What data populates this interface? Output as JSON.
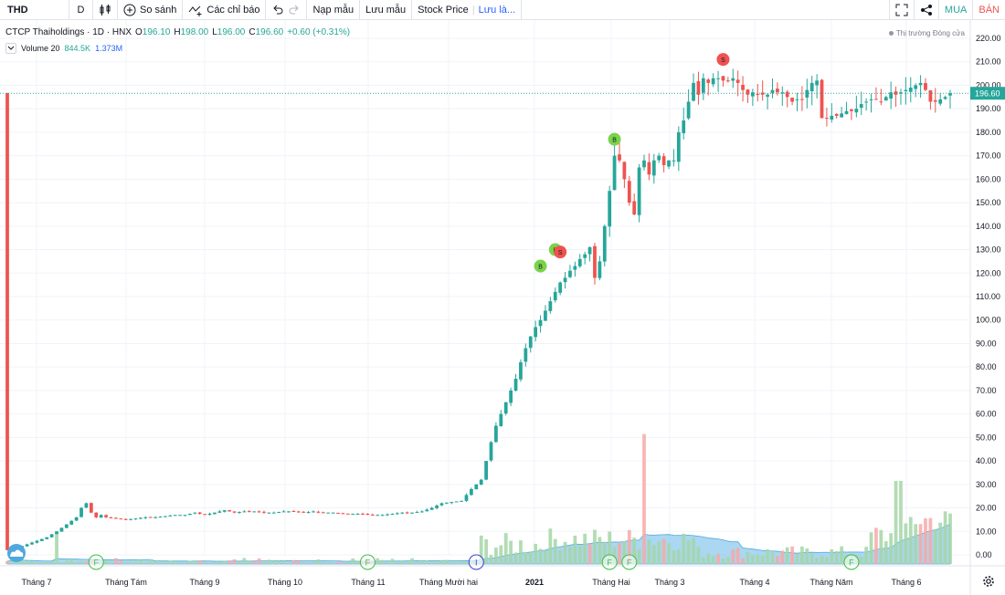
{
  "toolbar": {
    "symbol": "THD",
    "interval": "D",
    "compare_label": "So sánh",
    "indicators_label": "Các chỉ báo",
    "load_template_label": "Nạp mẫu",
    "save_template_label": "Lưu mẫu",
    "layout_name": "Stock Price",
    "save_layout_label": "Lưu là...",
    "buy_label": "MUA",
    "sell_label": "BÁN"
  },
  "legend": {
    "title": "CTCP Thaiholdings · 1D · HNX",
    "open_key": "O",
    "open": "196.10",
    "high_key": "H",
    "high": "198.00",
    "low_key": "L",
    "low": "196.00",
    "close_key": "C",
    "close": "196.60",
    "change": "+0.60 (+0.31%)",
    "volume_label": "Volume 20",
    "volume_value": "844.5K",
    "volume_ma": "1.373M"
  },
  "market_status": "Thị trường Đóng cửa",
  "colors": {
    "up": "#26a69a",
    "down": "#ef5350",
    "volume_up": "#a5d6a7",
    "volume_down": "#f7a9a7",
    "volume_ma_fill": "#8ec9ee",
    "price_line": "#26a69a",
    "buy_marker": "#7bd34b",
    "sell_marker": "#ef5350",
    "grid": "#f0f3fa",
    "axis_text": "#131722"
  },
  "chart_data": {
    "type": "candlestick",
    "price_axis": {
      "ticks": [
        "220.00",
        "210.00",
        "200.00",
        "190.00",
        "180.00",
        "170.00",
        "160.00",
        "150.00",
        "140.00",
        "130.00",
        "120.00",
        "110.00",
        "100.00",
        "90.00",
        "80.00",
        "70.00",
        "60.00",
        "50.00",
        "40.00",
        "30.00",
        "20.00",
        "10.00",
        "0.00"
      ],
      "ylim": [
        0,
        220
      ]
    },
    "time_axis": {
      "labels": [
        "Tháng 7",
        "Tháng Tám",
        "Tháng 9",
        "Tháng 10",
        "Tháng 11",
        "Tháng Mười hai",
        "2021",
        "Tháng Hai",
        "Tháng 3",
        "Tháng 4",
        "Tháng Năm",
        "Tháng 6"
      ]
    },
    "last_price": "196.60",
    "last_price_value": 196.6,
    "price_path": [
      [
        0,
        2
      ],
      [
        2,
        3
      ],
      [
        4,
        4.5
      ],
      [
        6,
        6
      ],
      [
        8,
        7.5
      ],
      [
        10,
        10
      ],
      [
        12,
        13
      ],
      [
        14,
        16
      ],
      [
        15,
        20
      ],
      [
        16,
        22
      ],
      [
        17,
        18
      ],
      [
        18,
        16
      ],
      [
        19,
        17
      ],
      [
        20,
        16
      ],
      [
        22,
        15.5
      ],
      [
        24,
        15
      ],
      [
        26,
        15.5
      ],
      [
        28,
        16
      ],
      [
        30,
        16
      ],
      [
        32,
        16.5
      ],
      [
        34,
        17
      ],
      [
        36,
        17
      ],
      [
        38,
        18
      ],
      [
        40,
        17
      ],
      [
        42,
        18
      ],
      [
        44,
        19
      ],
      [
        46,
        18
      ],
      [
        48,
        18.5
      ],
      [
        50,
        18.5
      ],
      [
        52,
        18
      ],
      [
        54,
        18
      ],
      [
        56,
        18.5
      ],
      [
        58,
        18.5
      ],
      [
        60,
        18
      ],
      [
        62,
        18.5
      ],
      [
        64,
        18
      ],
      [
        66,
        18
      ],
      [
        68,
        17.5
      ],
      [
        70,
        17.5
      ],
      [
        72,
        17.5
      ],
      [
        74,
        17
      ],
      [
        76,
        17
      ],
      [
        78,
        17.5
      ],
      [
        80,
        18
      ],
      [
        82,
        18
      ],
      [
        84,
        18.5
      ],
      [
        86,
        20
      ],
      [
        88,
        22
      ],
      [
        90,
        22.5
      ],
      [
        92,
        23
      ],
      [
        94,
        28
      ],
      [
        96,
        32
      ],
      [
        97,
        40
      ],
      [
        98,
        48
      ],
      [
        99,
        55
      ],
      [
        100,
        60
      ],
      [
        101,
        65
      ],
      [
        102,
        70
      ],
      [
        103,
        75
      ],
      [
        104,
        82
      ],
      [
        105,
        88
      ],
      [
        106,
        93
      ],
      [
        107,
        97
      ],
      [
        108,
        100
      ],
      [
        109,
        104
      ],
      [
        110,
        108
      ],
      [
        111,
        112
      ],
      [
        112,
        116
      ],
      [
        113,
        118
      ],
      [
        114,
        121
      ],
      [
        115,
        123
      ],
      [
        116,
        126
      ],
      [
        117,
        128
      ],
      [
        118,
        131
      ],
      [
        119,
        118
      ],
      [
        120,
        125
      ],
      [
        121,
        140
      ],
      [
        122,
        155
      ],
      [
        123,
        170
      ],
      [
        124,
        168
      ],
      [
        125,
        160
      ],
      [
        126,
        150
      ],
      [
        127,
        145
      ],
      [
        128,
        165
      ],
      [
        129,
        168
      ],
      [
        130,
        162
      ],
      [
        131,
        168
      ],
      [
        132,
        170
      ],
      [
        133,
        166
      ],
      [
        134,
        168
      ],
      [
        135,
        168
      ],
      [
        136,
        180
      ],
      [
        137,
        185
      ],
      [
        138,
        193
      ],
      [
        139,
        201
      ],
      [
        140,
        196
      ],
      [
        141,
        203
      ],
      [
        142,
        201
      ],
      [
        143,
        203
      ],
      [
        144,
        203
      ],
      [
        145,
        202
      ],
      [
        146,
        202
      ],
      [
        147,
        203
      ],
      [
        148,
        201
      ],
      [
        149,
        198
      ],
      [
        150,
        196
      ],
      [
        151,
        197
      ],
      [
        152,
        196
      ],
      [
        153,
        196
      ],
      [
        154,
        196
      ],
      [
        155,
        198
      ],
      [
        156,
        197
      ],
      [
        157,
        197
      ],
      [
        158,
        195
      ],
      [
        159,
        193
      ],
      [
        160,
        194
      ],
      [
        161,
        194
      ],
      [
        162,
        198
      ],
      [
        163,
        201
      ],
      [
        164,
        202
      ],
      [
        165,
        186
      ],
      [
        166,
        186
      ],
      [
        167,
        187
      ],
      [
        168,
        187
      ],
      [
        169,
        188
      ],
      [
        170,
        189
      ],
      [
        171,
        189
      ],
      [
        172,
        190
      ],
      [
        173,
        192
      ],
      [
        174,
        193
      ],
      [
        175,
        194
      ],
      [
        176,
        194
      ],
      [
        177,
        193
      ],
      [
        178,
        195
      ],
      [
        179,
        197
      ],
      [
        180,
        196
      ],
      [
        181,
        197
      ],
      [
        182,
        198
      ],
      [
        183,
        199
      ],
      [
        184,
        200
      ],
      [
        185,
        201
      ],
      [
        186,
        198
      ],
      [
        187,
        193
      ],
      [
        188,
        193
      ],
      [
        189,
        194
      ],
      [
        190,
        195
      ],
      [
        191,
        196.6
      ]
    ],
    "markers": [
      {
        "type": "S",
        "bar": 145,
        "price": 211
      },
      {
        "type": "B",
        "bar": 123,
        "price": 177
      },
      {
        "type": "B",
        "bar": 111,
        "price": 130
      },
      {
        "type": "S",
        "bar": 112,
        "price": 129
      },
      {
        "type": "B",
        "bar": 108,
        "price": 123
      }
    ],
    "events": [
      {
        "type": "F",
        "bar": 18
      },
      {
        "type": "F",
        "bar": 73
      },
      {
        "type": "I",
        "bar": 95
      },
      {
        "type": "F",
        "bar": 122
      },
      {
        "type": "F",
        "bar": 126
      },
      {
        "type": "F",
        "bar": 171
      }
    ],
    "volume_spike_bar": 129,
    "volume_ylim": [
      0,
      52
    ]
  }
}
